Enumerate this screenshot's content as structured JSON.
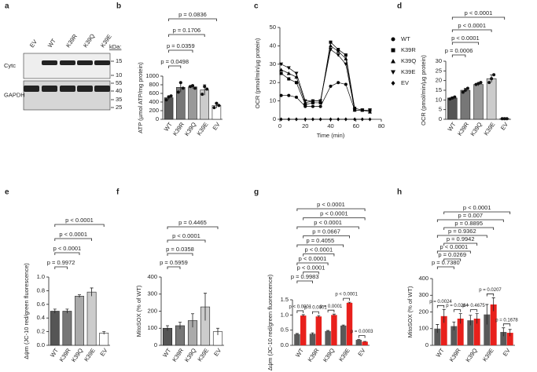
{
  "chart_data": [
    {
      "type": "blot",
      "panel": "a",
      "lanes": [
        "EV",
        "WT",
        "K39R",
        "K39Q",
        "K39E"
      ],
      "kda_title": "kDa:",
      "rows": [
        {
          "label": "Cytc",
          "markers": [
            15,
            10
          ]
        },
        {
          "label": "GAPDH",
          "markers": [
            55,
            40,
            35,
            25
          ]
        }
      ]
    },
    {
      "type": "bar",
      "panel": "b",
      "ylabel": "ATP (µmol ATP/mg protein)",
      "categories": [
        "WT",
        "K39R",
        "K39Q",
        "K39E",
        "EV"
      ],
      "values": [
        500,
        740,
        750,
        680,
        320
      ],
      "errors": [
        40,
        110,
        40,
        120,
        60
      ],
      "points": [
        [
          450,
          520,
          540
        ],
        [
          630,
          850,
          720
        ],
        [
          760,
          780,
          720
        ],
        [
          580,
          760,
          700
        ],
        [
          270,
          370,
          320
        ]
      ],
      "colors": [
        "#555555",
        "#777777",
        "#999999",
        "#cccccc",
        "#ffffff"
      ],
      "ylim": [
        0,
        1000
      ],
      "yticks": [
        0,
        200,
        400,
        600,
        800,
        1000
      ],
      "comparisons": [
        {
          "from": 0,
          "to": 1,
          "label": "p = 0.0498"
        },
        {
          "from": 0,
          "to": 2,
          "label": "p = 0.0359"
        },
        {
          "from": 0,
          "to": 3,
          "label": "p = 0.1706"
        },
        {
          "from": 0,
          "to": 4,
          "label": "p = 0.0836"
        }
      ]
    },
    {
      "type": "line",
      "panel": "c",
      "xlabel": "Time (min)",
      "ylabel": "OCR (pmol/min/µg protein)",
      "x": [
        1,
        7,
        13,
        20,
        26,
        32,
        40,
        46,
        52,
        59,
        65,
        71
      ],
      "xlim": [
        0,
        80
      ],
      "xticks": [
        0,
        20,
        40,
        60,
        80
      ],
      "ylim": [
        0,
        50
      ],
      "yticks": [
        0,
        10,
        20,
        30,
        40,
        50
      ],
      "series": [
        {
          "name": "WT",
          "marker": "circle",
          "color": "#000000",
          "values": [
            13,
            13,
            12,
            7,
            7,
            7,
            18,
            20,
            19,
            5,
            5,
            5
          ]
        },
        {
          "name": "K39R",
          "marker": "square",
          "color": "#000000",
          "values": [
            25,
            22,
            20,
            8,
            9,
            9,
            42,
            38,
            35,
            6,
            5,
            5
          ]
        },
        {
          "name": "K39Q",
          "marker": "triangle",
          "color": "#000000",
          "values": [
            27,
            25,
            23,
            9,
            10,
            10,
            40,
            37,
            33,
            5,
            5,
            4
          ]
        },
        {
          "name": "K39E",
          "marker": "triangle-down",
          "color": "#000000",
          "values": [
            30,
            28,
            25,
            10,
            10,
            10,
            38,
            35,
            30,
            5,
            5,
            5
          ]
        },
        {
          "name": "EV",
          "marker": "diamond",
          "color": "#000000",
          "values": [
            0,
            0,
            0,
            0,
            0,
            0,
            0,
            0,
            0,
            0,
            0,
            0
          ]
        }
      ]
    },
    {
      "type": "bar",
      "panel": "d",
      "ylabel": "OCR (pmol/min/µg protein)",
      "categories": [
        "WT",
        "K39R",
        "K39Q",
        "K39E",
        "EV"
      ],
      "values": [
        11,
        15,
        18,
        21,
        0.3
      ],
      "errors": [
        0.6,
        1,
        0.7,
        2,
        0.1
      ],
      "points": [
        [
          10.5,
          11,
          11.5
        ],
        [
          14,
          15,
          16
        ],
        [
          18,
          18.5,
          19
        ],
        [
          19,
          21,
          23
        ],
        [
          0.3,
          0.3,
          0.3
        ]
      ],
      "colors": [
        "#555555",
        "#777777",
        "#999999",
        "#cccccc",
        "#ffffff"
      ],
      "ylim": [
        0,
        30
      ],
      "yticks": [
        0,
        5,
        10,
        15,
        20,
        25,
        30
      ],
      "comparisons": [
        {
          "from": 0,
          "to": 1,
          "label": "p = 0.0006"
        },
        {
          "from": 0,
          "to": 2,
          "label": "p < 0.0001"
        },
        {
          "from": 0,
          "to": 3,
          "label": "p < 0.0001"
        },
        {
          "from": 0,
          "to": 4,
          "label": "p < 0.0001"
        }
      ]
    },
    {
      "type": "bar",
      "panel": "e",
      "ylabel": "Δψm (JC-10 red/green fluorescence)",
      "categories": [
        "WT",
        "K39R",
        "K39Q",
        "K39E",
        "EV"
      ],
      "values": [
        0.5,
        0.5,
        0.72,
        0.78,
        0.18
      ],
      "errors": [
        0.03,
        0.03,
        0.02,
        0.06,
        0.02
      ],
      "colors": [
        "#555555",
        "#777777",
        "#aaaaaa",
        "#cccccc",
        "#ffffff"
      ],
      "ylim": [
        0,
        1
      ],
      "yticks": [
        {
          "value": 0,
          "label": "0.0"
        },
        0.2,
        0.4,
        0.6,
        0.8,
        {
          "value": 1,
          "label": "1.0"
        }
      ],
      "comparisons": [
        {
          "from": 0,
          "to": 1,
          "label": "p = 0.9972"
        },
        {
          "from": 0,
          "to": 2,
          "label": "p < 0.0001"
        },
        {
          "from": 0,
          "to": 3,
          "label": "p < 0.0001"
        },
        {
          "from": 0,
          "to": 4,
          "label": "p < 0.0001"
        }
      ]
    },
    {
      "type": "bar",
      "panel": "f",
      "ylabel": "MitoSOX (% of WT)",
      "categories": [
        "WT",
        "K39R",
        "K39Q",
        "K39E",
        "EV"
      ],
      "values": [
        100,
        115,
        145,
        225,
        80
      ],
      "errors": [
        15,
        20,
        40,
        80,
        20
      ],
      "colors": [
        "#555555",
        "#777777",
        "#aaaaaa",
        "#cccccc",
        "#ffffff"
      ],
      "ylim": [
        0,
        400
      ],
      "yticks": [
        0,
        100,
        200,
        300,
        400
      ],
      "comparisons": [
        {
          "from": 0,
          "to": 1,
          "label": "p = 0.5959"
        },
        {
          "from": 0,
          "to": 2,
          "label": "p = 0.0358"
        },
        {
          "from": 0,
          "to": 3,
          "label": "p < 0.0001"
        },
        {
          "from": 0,
          "to": 4,
          "label": "p = 0.4465"
        }
      ]
    },
    {
      "type": "grouped_bar",
      "panel": "g",
      "ylabel": "Δψm (JC-10 red/green fluorescence)",
      "categories": [
        "WT",
        "K39R",
        "K39Q",
        "K39E",
        "EV"
      ],
      "series": [
        {
          "color": "#595959",
          "values": [
            0.37,
            0.38,
            0.47,
            0.65,
            0.18
          ],
          "errors": [
            0.02,
            0.03,
            0.02,
            0.02,
            0.01
          ]
        },
        {
          "color": "#e8201c",
          "values": [
            0.98,
            0.95,
            1.0,
            1.4,
            0.12
          ],
          "errors": [
            0.03,
            0.03,
            0.03,
            0.02,
            0.01
          ]
        }
      ],
      "ylim": [
        0,
        1.5
      ],
      "yticks": [
        {
          "value": 0,
          "label": "0.0"
        },
        0.5,
        {
          "value": 1,
          "label": "1.0"
        },
        1.5
      ],
      "pair_labels": [
        "p < 0.0001",
        "p = 0.0001",
        "p = 0.0001",
        "p < 0.0001",
        "p = 0.0003"
      ],
      "comparisons": [
        {
          "from": [
            0,
            0
          ],
          "to": [
            1,
            0
          ],
          "label": "p = 0.9983"
        },
        {
          "from": [
            0,
            1
          ],
          "to": [
            1,
            1
          ],
          "label": "p < 0.0001"
        },
        {
          "from": [
            0,
            0
          ],
          "to": [
            2,
            0
          ],
          "label": "p < 0.0001"
        },
        {
          "from": [
            0,
            1
          ],
          "to": [
            2,
            1
          ],
          "label": "p < 0.0001"
        },
        {
          "from": [
            0,
            0
          ],
          "to": [
            3,
            0
          ],
          "label": "p = 0.4055"
        },
        {
          "from": [
            0,
            1
          ],
          "to": [
            3,
            1
          ],
          "label": "p = 0.0667"
        },
        {
          "from": [
            0,
            0
          ],
          "to": [
            4,
            0
          ],
          "label": "p < 0.0001"
        },
        {
          "from": [
            0,
            1
          ],
          "to": [
            4,
            1
          ],
          "label": "p < 0.0001"
        },
        {
          "from": [
            0,
            0
          ],
          "to": [
            4,
            1
          ],
          "label": "p < 0.0001"
        }
      ]
    },
    {
      "type": "grouped_bar",
      "panel": "h",
      "ylabel": "MitoSOX (% of WT)",
      "categories": [
        "WT",
        "K39R",
        "K39Q",
        "K39E",
        "EV"
      ],
      "series": [
        {
          "color": "#595959",
          "values": [
            100,
            115,
            150,
            185,
            80
          ],
          "errors": [
            25,
            25,
            30,
            60,
            25
          ]
        },
        {
          "color": "#e8201c",
          "values": [
            175,
            160,
            160,
            245,
            75
          ],
          "errors": [
            40,
            30,
            30,
            40,
            20
          ]
        }
      ],
      "ylim": [
        0,
        400
      ],
      "yticks": [
        0,
        100,
        200,
        300,
        400
      ],
      "pair_labels": [
        "p = 0.0024",
        "p = 0.0284",
        "p = 0.4675",
        "p = 0.0207",
        "p = 0.1678"
      ],
      "comparisons": [
        {
          "from": [
            0,
            0
          ],
          "to": [
            1,
            0
          ],
          "label": "p = 0.7380"
        },
        {
          "from": [
            0,
            1
          ],
          "to": [
            1,
            1
          ],
          "label": "p = 0.0269"
        },
        {
          "from": [
            0,
            0
          ],
          "to": [
            2,
            0
          ],
          "label": "p < 0.0001"
        },
        {
          "from": [
            0,
            1
          ],
          "to": [
            2,
            1
          ],
          "label": "p = 0.9942"
        },
        {
          "from": [
            0,
            0
          ],
          "to": [
            3,
            0
          ],
          "label": "p = 0.9362"
        },
        {
          "from": [
            0,
            1
          ],
          "to": [
            3,
            1
          ],
          "label": "p = 0.8895"
        },
        {
          "from": [
            0,
            0
          ],
          "to": [
            4,
            0
          ],
          "label": "p = 0.007"
        },
        {
          "from": [
            0,
            1
          ],
          "to": [
            4,
            1
          ],
          "label": "p < 0.0001"
        }
      ]
    }
  ]
}
